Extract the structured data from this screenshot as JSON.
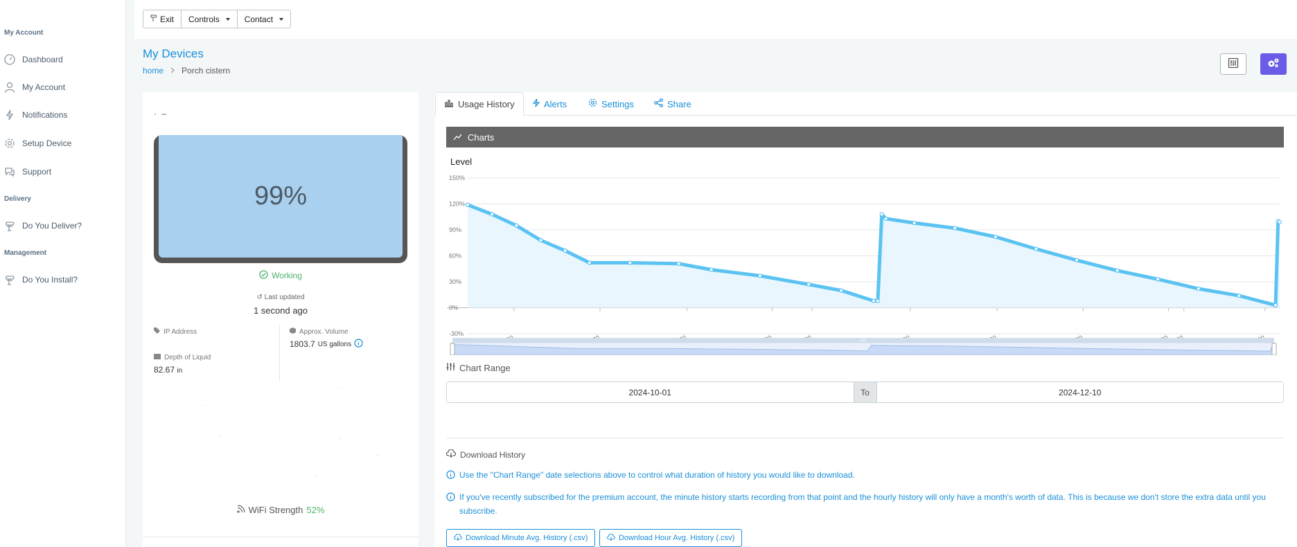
{
  "sidebar": {
    "sections": [
      "My Account",
      "Delivery",
      "Management"
    ],
    "items": [
      {
        "label": "Dashboard",
        "icon": "gauge-icon"
      },
      {
        "label": "My Account",
        "icon": "user-icon"
      },
      {
        "label": "Notifications",
        "icon": "bolt-icon"
      },
      {
        "label": "Setup Device",
        "icon": "gear-icon"
      },
      {
        "label": "Support",
        "icon": "chat-icon"
      },
      {
        "label": "Do You Deliver?",
        "icon": "signpost-icon"
      },
      {
        "label": "Do You Install?",
        "icon": "signpost-icon"
      }
    ]
  },
  "toolbar": {
    "exit": "Exit",
    "controls": "Controls",
    "contact": "Contact"
  },
  "header": {
    "title": "My Devices",
    "breadcrumb": [
      "home",
      "Porch cistern"
    ]
  },
  "device": {
    "dots": "· –",
    "level": "99%",
    "status": "Working",
    "last_updated_label": "Last updated",
    "last_updated_value": "1 second ago",
    "ip_label": "IP Address",
    "volume_label": "Approx. Volume",
    "volume_value": "1803.7",
    "volume_unit": "US gallons",
    "depth_label": "Depth of Liquid",
    "depth_value": "82.67",
    "depth_unit": "in",
    "wifi_label": "WiFi Strength",
    "wifi_value": "52%"
  },
  "tabs": [
    "Usage History",
    "Alerts",
    "Settings",
    "Share"
  ],
  "charts_header": "Charts",
  "chart_data": {
    "type": "area",
    "title": "Level",
    "xlabel": "",
    "ylabel": "",
    "y_ticks": [
      "150%",
      "120%",
      "90%",
      "60%",
      "30%",
      "0%",
      "-30%"
    ],
    "ylim": [
      -30,
      150
    ],
    "x_ticks": [
      "10-07 20:00",
      "10-14 20:00",
      "10-21 20:00",
      "10-28 20:00",
      "10-31 20:00",
      "11-07 19:00",
      "11-14 19:00",
      "11-21 19:00",
      "11-28 19:00",
      "11-30 19:00",
      "12-07 19:00"
    ],
    "x_tick_pos": [
      0.057,
      0.163,
      0.27,
      0.375,
      0.424,
      0.545,
      0.652,
      0.758,
      0.863,
      0.882,
      0.982
    ],
    "series": [
      {
        "x": [
          0,
          0.03,
          0.06,
          0.09,
          0.12,
          0.15,
          0.2,
          0.26,
          0.3,
          0.36,
          0.42,
          0.46,
          0.5,
          0.505,
          0.51,
          0.515,
          0.55,
          0.6,
          0.65,
          0.7,
          0.75,
          0.8,
          0.85,
          0.9,
          0.95,
          0.995,
          0.998,
          1.0
        ],
        "y": [
          119,
          108,
          95,
          78,
          66,
          52,
          52,
          51,
          44,
          37,
          27,
          20,
          8,
          8,
          108,
          103,
          98,
          92,
          82,
          68,
          55,
          43,
          33,
          22,
          14,
          3,
          100,
          99
        ]
      }
    ],
    "grid": true,
    "legend": "none"
  },
  "range": {
    "label": "Chart Range",
    "from": "2024-10-01",
    "to_label": "To",
    "to": "2024-12-10"
  },
  "download": {
    "title": "Download History",
    "note1": "Use the \"Chart Range\" date selections above to control what duration of history you would like to download.",
    "note2": "If you've recently subscribed for the premium account, the minute history starts recording from that point and the hourly history will only have a month's worth of data. This is because we don't store the extra data until you subscribe.",
    "minute_btn": "Download Minute Avg. History (.csv)",
    "hour_btn": "Download Hour Avg. History (.csv)"
  },
  "colors": {
    "accent": "#1a8fd8",
    "line": "#5bc3f2",
    "fill": "#e9f6fd",
    "tank": "#a9d0ee",
    "ok": "#4fb36a",
    "purple": "#6a5ce6"
  }
}
